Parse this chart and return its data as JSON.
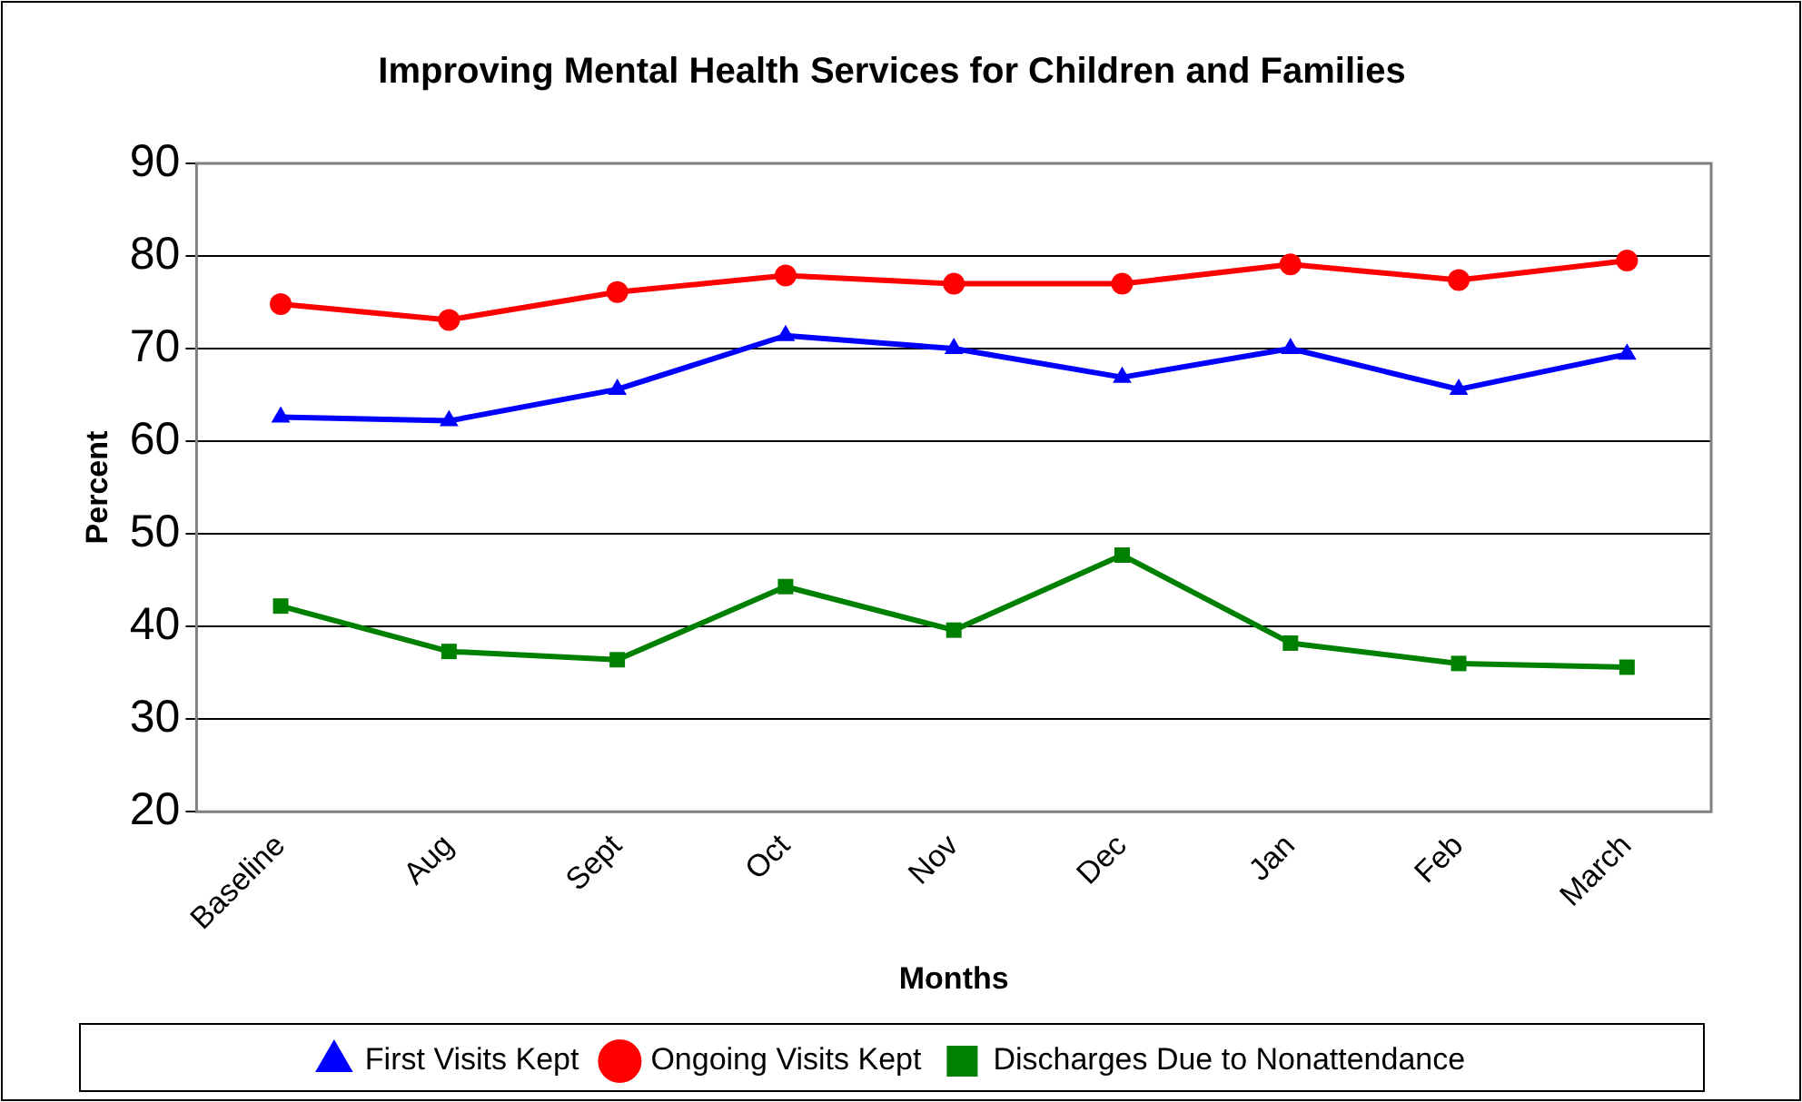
{
  "chart_data": {
    "type": "line",
    "title": "Improving Mental Health Services for Children and Families",
    "xlabel": "Months",
    "ylabel": "Percent",
    "categories": [
      "Baseline",
      "Aug",
      "Sept",
      "Oct",
      "Nov",
      "Dec",
      "Jan",
      "Feb",
      "March"
    ],
    "series": [
      {
        "name": "First Visits Kept",
        "color": "#0000ff",
        "marker": "triangle",
        "values": [
          62.6,
          62.2,
          65.6,
          71.4,
          70.0,
          66.9,
          70.0,
          65.6,
          69.4
        ]
      },
      {
        "name": "Ongoing Visits Kept",
        "color": "#ff0000",
        "marker": "circle",
        "values": [
          74.8,
          73.1,
          76.1,
          77.9,
          77.0,
          77.0,
          79.1,
          77.4,
          79.5
        ]
      },
      {
        "name": "Discharges Due to Nonattendance",
        "color": "#008000",
        "marker": "square",
        "values": [
          42.2,
          37.3,
          36.4,
          44.3,
          39.6,
          47.7,
          38.2,
          36.0,
          35.6
        ]
      }
    ],
    "ylim": [
      20,
      90
    ],
    "yticks": [
      20,
      30,
      40,
      50,
      60,
      70,
      80,
      90
    ],
    "grid": "y",
    "legend": "bottom",
    "line_style": "solid"
  }
}
